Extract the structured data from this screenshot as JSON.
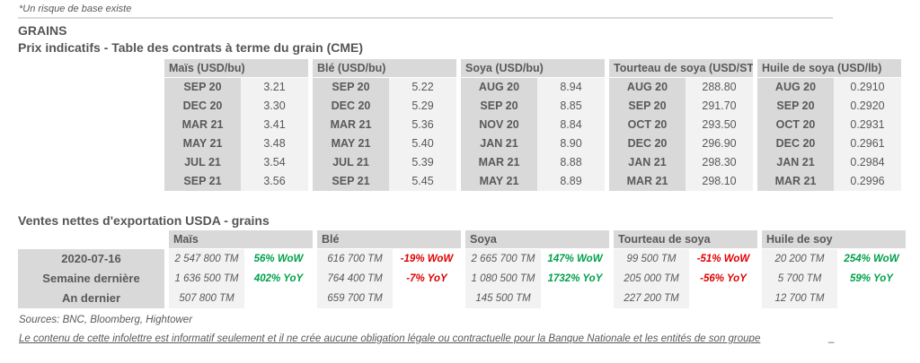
{
  "note": "*Un risque de base existe",
  "section_title": "GRAINS",
  "futures": {
    "title": "Prix indicatifs - Table des contrats à terme du grain (CME)",
    "groups": [
      {
        "label": "Maïs (USD/bu)",
        "rows": [
          [
            "SEP 20",
            "3.21"
          ],
          [
            "DEC 20",
            "3.30"
          ],
          [
            "MAR 21",
            "3.41"
          ],
          [
            "MAY 21",
            "3.48"
          ],
          [
            "JUL 21",
            "3.54"
          ],
          [
            "SEP 21",
            "3.56"
          ]
        ]
      },
      {
        "label": "Blé (USD/bu)",
        "rows": [
          [
            "SEP 20",
            "5.22"
          ],
          [
            "DEC 20",
            "5.29"
          ],
          [
            "MAR 21",
            "5.36"
          ],
          [
            "MAY 21",
            "5.40"
          ],
          [
            "JUL 21",
            "5.39"
          ],
          [
            "SEP 21",
            "5.45"
          ]
        ]
      },
      {
        "label": "Soya (USD/bu)",
        "rows": [
          [
            "AUG 20",
            "8.94"
          ],
          [
            "SEP 20",
            "8.85"
          ],
          [
            "NOV 20",
            "8.84"
          ],
          [
            "JAN 21",
            "8.90"
          ],
          [
            "MAR 21",
            "8.88"
          ],
          [
            "MAY 21",
            "8.89"
          ]
        ]
      },
      {
        "label": "Tourteau de soya (USD/ST",
        "rows": [
          [
            "AUG 20",
            "288.80"
          ],
          [
            "SEP 20",
            "291.70"
          ],
          [
            "OCT 20",
            "293.50"
          ],
          [
            "DEC 20",
            "296.90"
          ],
          [
            "JAN 21",
            "298.30"
          ],
          [
            "MAR 21",
            "298.10"
          ]
        ]
      },
      {
        "label": "Huile de soya (USD/lb)",
        "rows": [
          [
            "AUG 20",
            "0.2910"
          ],
          [
            "SEP 20",
            "0.2920"
          ],
          [
            "OCT 20",
            "0.2931"
          ],
          [
            "DEC 20",
            "0.2961"
          ],
          [
            "JAN 21",
            "0.2984"
          ],
          [
            "MAR 21",
            "0.2996"
          ]
        ]
      }
    ]
  },
  "exports": {
    "title": "Ventes nettes d'exportation USDA - grains",
    "row_labels": [
      "2020-07-16",
      "Semaine dernière",
      "An dernier"
    ],
    "groups": [
      {
        "label": "Maïs",
        "rows": [
          {
            "qty": "2 547 800 TM",
            "pct": "56% WoW",
            "dir": "up"
          },
          {
            "qty": "1 636 500 TM",
            "pct": "402% YoY",
            "dir": "up"
          },
          {
            "qty": "507 800 TM",
            "pct": "",
            "dir": ""
          }
        ]
      },
      {
        "label": "Blé",
        "rows": [
          {
            "qty": "616 700 TM",
            "pct": "-19% WoW",
            "dir": "down"
          },
          {
            "qty": "764 400 TM",
            "pct": "-7% YoY",
            "dir": "down"
          },
          {
            "qty": "659 700 TM",
            "pct": "",
            "dir": ""
          }
        ]
      },
      {
        "label": "Soya",
        "rows": [
          {
            "qty": "2 665 700 TM",
            "pct": "147% WoW",
            "dir": "up"
          },
          {
            "qty": "1 080 500 TM",
            "pct": "1732% YoY",
            "dir": "up"
          },
          {
            "qty": "145 500 TM",
            "pct": "",
            "dir": ""
          }
        ]
      },
      {
        "label": "Tourteau de soya",
        "rows": [
          {
            "qty": "99 500 TM",
            "pct": "-51% WoW",
            "dir": "down"
          },
          {
            "qty": "205 000 TM",
            "pct": "-56% YoY",
            "dir": "down"
          },
          {
            "qty": "227 200 TM",
            "pct": "",
            "dir": ""
          }
        ]
      },
      {
        "label": "Huile de soy",
        "rows": [
          {
            "qty": "20 200 TM",
            "pct": "254% WoW",
            "dir": "up"
          },
          {
            "qty": "5 700 TM",
            "pct": "59% YoY",
            "dir": "up"
          },
          {
            "qty": "12 700 TM",
            "pct": "",
            "dir": ""
          }
        ]
      }
    ]
  },
  "footer": {
    "sources": "Sources: BNC, Bloomberg, Hightower",
    "disclaimer": "Le contenu de cette infolettre est informatif seulement et il ne crée aucune obligation légale ou contractuelle pour la Banque Nationale et les entités de son groupe",
    "stray": "_"
  },
  "colors": {
    "positive": "#00a14b",
    "negative": "#e00000",
    "text": "#595959",
    "cell_gray": "#d9d9d9",
    "cell_light": "#f2f2f2"
  }
}
